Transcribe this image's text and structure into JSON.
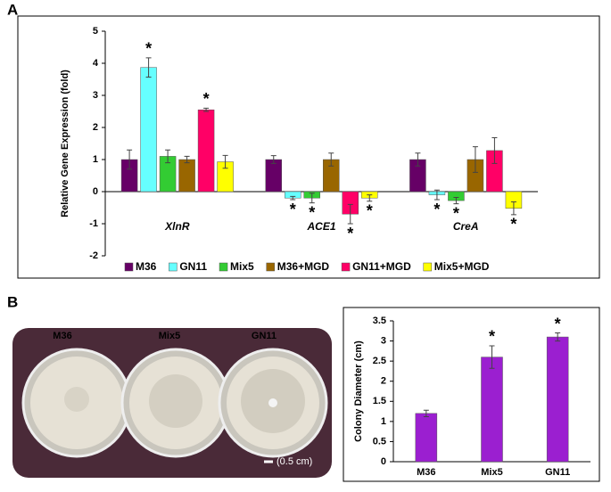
{
  "chart_data": [
    {
      "type": "bar",
      "panel_label": "A",
      "y_label": "Relative Gene Expression (fold)",
      "categories": [
        "XlnR",
        "ACE1",
        "CreA"
      ],
      "series": [
        {
          "name": "M36",
          "color": "#660066",
          "values": [
            1.0,
            1.0,
            1.0
          ],
          "errors": [
            0.3,
            0.12,
            0.2
          ],
          "significance": [
            null,
            null,
            null
          ]
        },
        {
          "name": "GN11",
          "color": "#66ffff",
          "values": [
            3.87,
            -0.2,
            -0.1
          ],
          "errors": [
            0.3,
            0.05,
            0.15
          ],
          "significance": [
            "*",
            "*",
            "*"
          ]
        },
        {
          "name": "Mix5",
          "color": "#33cc33",
          "values": [
            1.1,
            -0.2,
            -0.28
          ],
          "errors": [
            0.2,
            0.15,
            0.1
          ],
          "significance": [
            null,
            "*",
            "*"
          ]
        },
        {
          "name": "M36+MGD",
          "color": "#996600",
          "values": [
            1.0,
            1.0,
            1.0
          ],
          "errors": [
            0.1,
            0.2,
            0.4
          ],
          "significance": [
            null,
            null,
            null
          ]
        },
        {
          "name": "GN11+MGD",
          "color": "#ff0066",
          "values": [
            2.55,
            -0.7,
            1.28
          ],
          "errors": [
            0.05,
            0.3,
            0.4
          ],
          "significance": [
            "*",
            "*",
            null
          ]
        },
        {
          "name": "Mix5+MGD",
          "color": "#ffff00",
          "values": [
            0.93,
            -0.2,
            -0.52
          ],
          "errors": [
            0.2,
            0.1,
            0.2
          ],
          "significance": [
            null,
            "*",
            "*"
          ]
        }
      ],
      "ylim": [
        -2,
        5
      ],
      "yticks": [
        -2,
        -1,
        0,
        1,
        2,
        3,
        4,
        5
      ],
      "legend": "bottom"
    },
    {
      "type": "bar",
      "y_label": "Colony Diameter (cm)",
      "categories": [
        "M36",
        "Mix5",
        "GN11"
      ],
      "series": [
        {
          "color": "#9b1fd0",
          "values": [
            1.2,
            2.6,
            3.1
          ],
          "errors": [
            0.08,
            0.28,
            0.1
          ],
          "significance": [
            null,
            "*",
            "*"
          ]
        }
      ],
      "ylim": [
        0,
        3.5
      ],
      "yticks": [
        0,
        0.5,
        1,
        1.5,
        2,
        2.5,
        3,
        3.5
      ]
    }
  ],
  "photo": {
    "panel_label": "B",
    "labels": [
      "M36",
      "Mix5",
      "GN11"
    ],
    "scale_label": "(0.5 cm)"
  }
}
